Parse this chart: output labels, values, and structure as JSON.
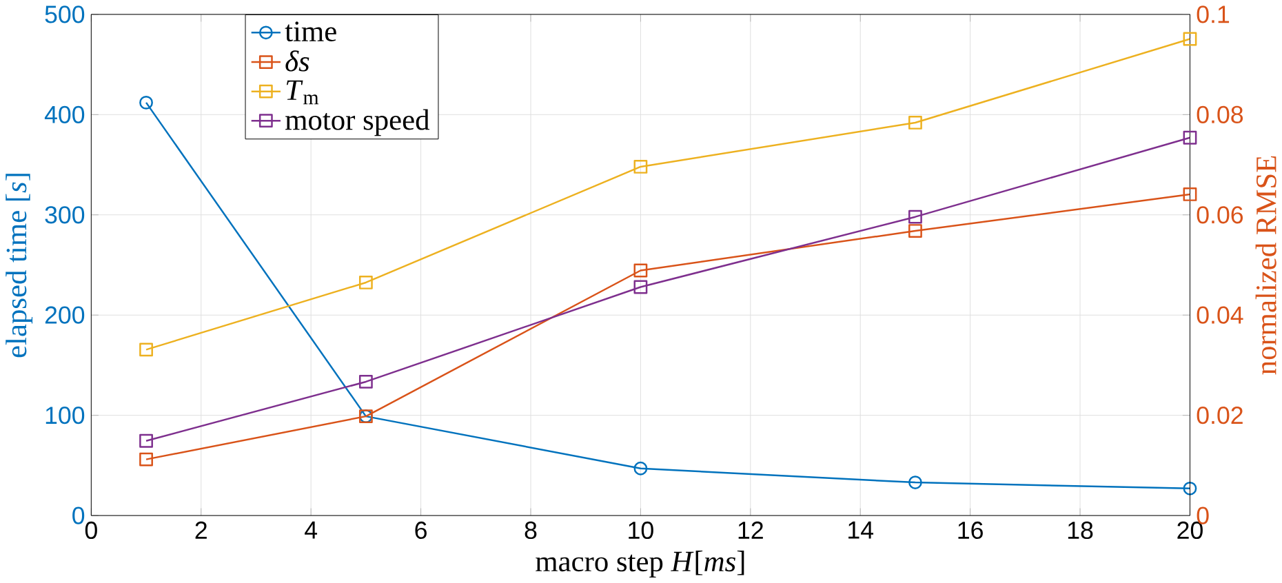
{
  "chart_data": {
    "type": "line",
    "xlabel": "macro step *H*[*ms*]",
    "ylabel": "elapsed time [*s*]",
    "y2label": "normalized RMSE",
    "xlim": [
      0,
      20
    ],
    "xticks": [
      0,
      2,
      4,
      6,
      8,
      10,
      12,
      14,
      16,
      18,
      20
    ],
    "ylim": [
      0,
      500
    ],
    "yticks": [
      0,
      100,
      200,
      300,
      400,
      500
    ],
    "y2lim": [
      0,
      0.1
    ],
    "y2ticks": [
      0,
      0.02,
      0.04,
      0.06,
      0.08,
      0.1
    ],
    "grid": true,
    "legend": "top left",
    "series": [
      {
        "name": "time",
        "color": "#0072bd",
        "marker": "circle",
        "x": [
          1,
          5,
          10,
          15,
          20
        ],
        "values": [
          412,
          99,
          47,
          33,
          27
        ]
      },
      {
        "name": "*δs*",
        "color": "#d95319",
        "marker": "square",
        "axis": "y2",
        "x": [
          1,
          5,
          10,
          15,
          20
        ],
        "values": [
          0.0112,
          0.0198,
          0.0489,
          0.0568,
          0.0641
        ]
      },
      {
        "name": "*T*$_{m}$",
        "color": "#edb120",
        "marker": "square",
        "axis": "y2",
        "x": [
          1,
          5,
          10,
          15,
          20
        ],
        "values": [
          0.0331,
          0.0465,
          0.0696,
          0.0784,
          0.0951
        ]
      },
      {
        "name": "motor speed",
        "color": "#7e2f8e",
        "marker": "square",
        "axis": "y2",
        "x": [
          1,
          5,
          10,
          15,
          20
        ],
        "values": [
          0.0149,
          0.0267,
          0.0456,
          0.0596,
          0.0754
        ]
      }
    ]
  }
}
